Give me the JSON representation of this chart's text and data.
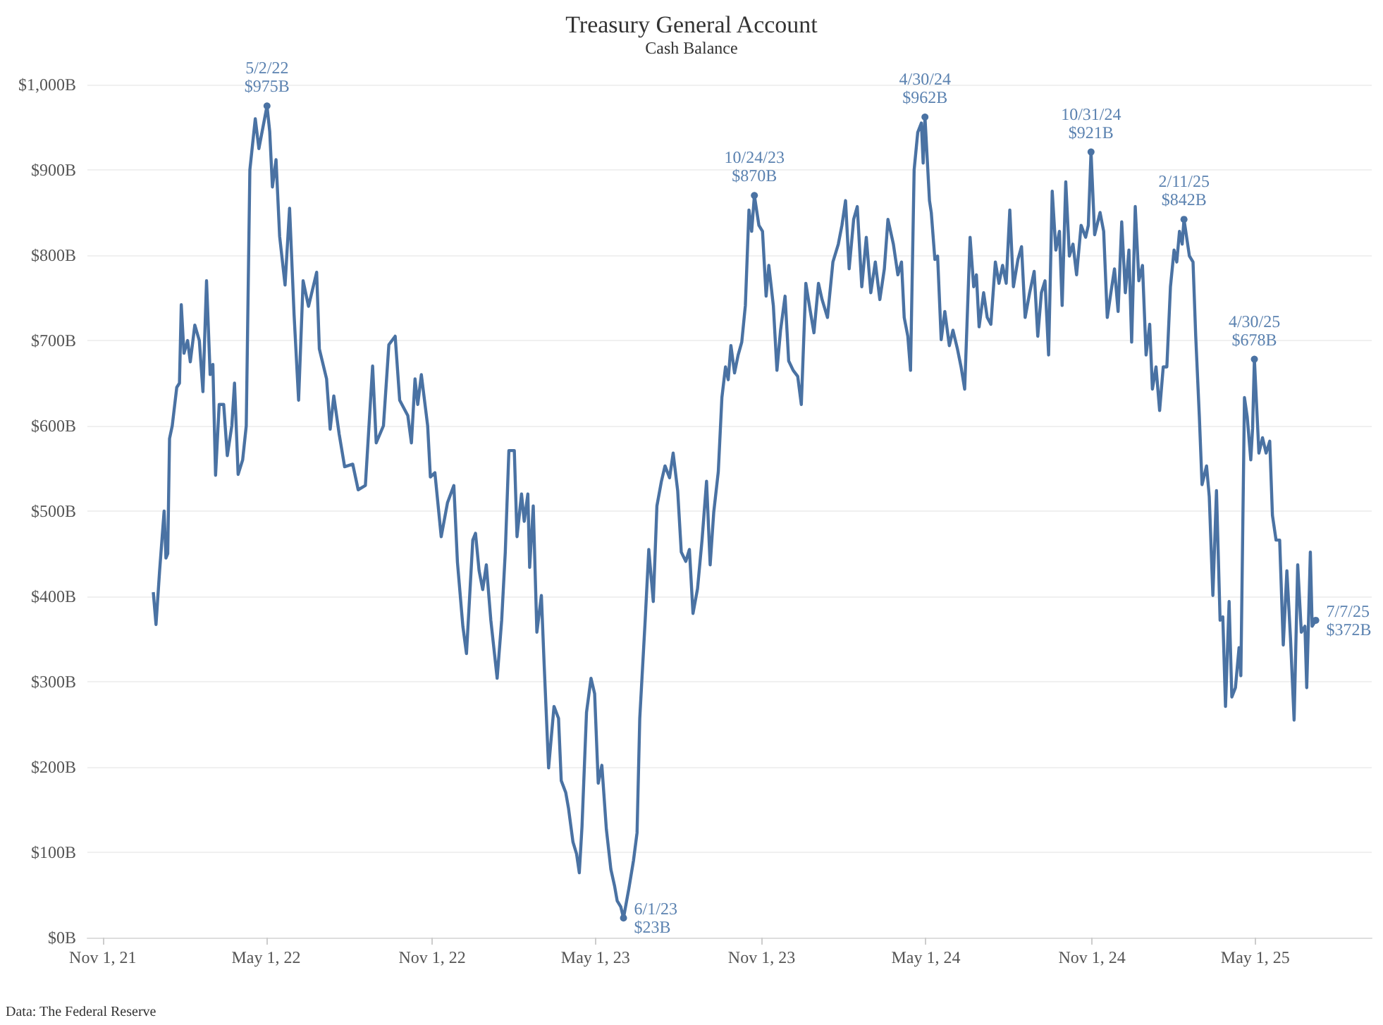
{
  "chart_data": {
    "type": "line",
    "title": "Treasury General Account",
    "subtitle": "Cash Balance",
    "x": [
      "2021-12-27",
      "2021-12-30",
      "2022-01-03",
      "2022-01-08",
      "2022-01-10",
      "2022-01-12",
      "2022-01-14",
      "2022-01-17",
      "2022-01-22",
      "2022-01-25",
      "2022-01-27",
      "2022-01-30",
      "2022-02-03",
      "2022-02-06",
      "2022-02-11",
      "2022-02-16",
      "2022-02-20",
      "2022-02-24",
      "2022-02-28",
      "2022-03-03",
      "2022-03-06",
      "2022-03-10",
      "2022-03-15",
      "2022-03-19",
      "2022-03-24",
      "2022-03-27",
      "2022-03-31",
      "2022-04-05",
      "2022-04-09",
      "2022-04-13",
      "2022-04-19",
      "2022-04-23",
      "2022-05-02",
      "2022-05-05",
      "2022-05-08",
      "2022-05-12",
      "2022-05-16",
      "2022-05-22",
      "2022-05-27",
      "2022-06-01",
      "2022-06-06",
      "2022-06-11",
      "2022-06-17",
      "2022-06-26",
      "2022-06-29",
      "2022-07-07",
      "2022-07-11",
      "2022-07-15",
      "2022-07-21",
      "2022-07-27",
      "2022-08-05",
      "2022-08-11",
      "2022-08-19",
      "2022-08-23",
      "2022-08-27",
      "2022-08-31",
      "2022-09-08",
      "2022-09-14",
      "2022-09-21",
      "2022-09-26",
      "2022-10-05",
      "2022-10-09",
      "2022-10-13",
      "2022-10-16",
      "2022-10-20",
      "2022-10-27",
      "2022-10-30",
      "2022-11-04",
      "2022-11-11",
      "2022-11-18",
      "2022-11-25",
      "2022-11-29",
      "2022-12-05",
      "2022-12-09",
      "2022-12-16",
      "2022-12-19",
      "2022-12-23",
      "2022-12-27",
      "2022-12-31",
      "2023-01-05",
      "2023-01-12",
      "2023-01-17",
      "2023-01-21",
      "2023-01-25",
      "2023-01-31",
      "2023-02-03",
      "2023-02-08",
      "2023-02-11",
      "2023-02-15",
      "2023-02-17",
      "2023-02-21",
      "2023-02-25",
      "2023-03-02",
      "2023-03-05",
      "2023-03-10",
      "2023-03-16",
      "2023-03-21",
      "2023-03-24",
      "2023-03-29",
      "2023-04-01",
      "2023-04-06",
      "2023-04-10",
      "2023-04-13",
      "2023-04-16",
      "2023-04-21",
      "2023-04-26",
      "2023-04-30",
      "2023-05-04",
      "2023-05-08",
      "2023-05-13",
      "2023-05-18",
      "2023-05-22",
      "2023-05-25",
      "2023-05-29",
      "2023-06-01",
      "2023-06-07",
      "2023-06-12",
      "2023-06-16",
      "2023-06-19",
      "2023-06-25",
      "2023-06-29",
      "2023-07-04",
      "2023-07-08",
      "2023-07-13",
      "2023-07-17",
      "2023-07-22",
      "2023-07-26",
      "2023-07-31",
      "2023-08-04",
      "2023-08-09",
      "2023-08-13",
      "2023-08-17",
      "2023-08-22",
      "2023-08-27",
      "2023-09-01",
      "2023-09-05",
      "2023-09-09",
      "2023-09-14",
      "2023-09-18",
      "2023-09-22",
      "2023-09-25",
      "2023-09-28",
      "2023-10-02",
      "2023-10-06",
      "2023-10-10",
      "2023-10-14",
      "2023-10-18",
      "2023-10-21",
      "2023-10-24",
      "2023-10-29",
      "2023-11-02",
      "2023-11-06",
      "2023-11-09",
      "2023-11-14",
      "2023-11-18",
      "2023-11-22",
      "2023-11-27",
      "2023-12-01",
      "2023-12-06",
      "2023-12-11",
      "2023-12-15",
      "2023-12-20",
      "2023-12-25",
      "2023-12-29",
      "2024-01-03",
      "2024-01-07",
      "2024-01-13",
      "2024-01-19",
      "2024-01-25",
      "2024-01-29",
      "2024-02-02",
      "2024-02-06",
      "2024-02-11",
      "2024-02-15",
      "2024-02-20",
      "2024-02-25",
      "2024-03-01",
      "2024-03-06",
      "2024-03-11",
      "2024-03-16",
      "2024-03-20",
      "2024-03-26",
      "2024-03-31",
      "2024-04-04",
      "2024-04-07",
      "2024-04-11",
      "2024-04-14",
      "2024-04-18",
      "2024-04-22",
      "2024-04-26",
      "2024-04-28",
      "2024-04-30",
      "2024-05-05",
      "2024-05-07",
      "2024-05-11",
      "2024-05-14",
      "2024-05-18",
      "2024-05-22",
      "2024-05-27",
      "2024-05-31",
      "2024-06-05",
      "2024-06-09",
      "2024-06-13",
      "2024-06-19",
      "2024-06-23",
      "2024-06-26",
      "2024-06-29",
      "2024-07-04",
      "2024-07-08",
      "2024-07-12",
      "2024-07-17",
      "2024-07-21",
      "2024-07-25",
      "2024-07-29",
      "2024-08-02",
      "2024-08-06",
      "2024-08-11",
      "2024-08-15",
      "2024-08-19",
      "2024-08-24",
      "2024-08-29",
      "2024-09-02",
      "2024-09-06",
      "2024-09-10",
      "2024-09-14",
      "2024-09-18",
      "2024-09-22",
      "2024-09-26",
      "2024-09-29",
      "2024-10-03",
      "2024-10-07",
      "2024-10-11",
      "2024-10-15",
      "2024-10-20",
      "2024-10-25",
      "2024-10-28",
      "2024-10-31",
      "2024-11-04",
      "2024-11-10",
      "2024-11-14",
      "2024-11-18",
      "2024-11-22",
      "2024-11-26",
      "2024-11-30",
      "2024-12-04",
      "2024-12-08",
      "2024-12-12",
      "2024-12-15",
      "2024-12-19",
      "2024-12-23",
      "2024-12-27",
      "2024-12-31",
      "2025-01-04",
      "2025-01-07",
      "2025-01-11",
      "2025-01-15",
      "2025-01-19",
      "2025-01-23",
      "2025-01-27",
      "2025-01-31",
      "2025-02-03",
      "2025-02-06",
      "2025-02-09",
      "2025-02-11",
      "2025-02-17",
      "2025-02-21",
      "2025-02-24",
      "2025-02-28",
      "2025-03-03",
      "2025-03-08",
      "2025-03-11",
      "2025-03-15",
      "2025-03-19",
      "2025-03-23",
      "2025-03-26",
      "2025-03-29",
      "2025-04-02",
      "2025-04-05",
      "2025-04-09",
      "2025-04-13",
      "2025-04-15",
      "2025-04-19",
      "2025-04-22",
      "2025-04-26",
      "2025-04-28",
      "2025-04-30",
      "2025-05-05",
      "2025-05-09",
      "2025-05-13",
      "2025-05-17",
      "2025-05-20",
      "2025-05-24",
      "2025-05-28",
      "2025-06-01",
      "2025-06-05",
      "2025-06-09",
      "2025-06-13",
      "2025-06-17",
      "2025-06-21",
      "2025-06-25",
      "2025-06-27",
      "2025-07-01",
      "2025-07-03",
      "2025-07-07"
    ],
    "series": [
      {
        "color": "#4a72a3",
        "values": [
          405,
          367,
          430,
          500,
          445,
          450,
          585,
          600,
          645,
          650,
          742,
          685,
          700,
          675,
          718,
          700,
          640,
          770,
          660,
          672,
          542,
          625,
          625,
          565,
          600,
          650,
          543,
          560,
          600,
          900,
          960,
          925,
          975,
          945,
          880,
          912,
          822,
          765,
          855,
          730,
          630,
          770,
          740,
          780,
          690,
          655,
          596,
          635,
          590,
          552,
          555,
          525,
          530,
          600,
          670,
          580,
          600,
          695,
          705,
          630,
          612,
          580,
          655,
          625,
          660,
          600,
          540,
          545,
          470,
          510,
          530,
          440,
          365,
          333,
          466,
          474,
          430,
          408,
          437,
          372,
          304,
          372,
          452,
          571,
          571,
          470,
          520,
          488,
          520,
          434,
          506,
          358,
          401,
          322,
          199,
          271,
          257,
          184,
          170,
          152,
          112,
          98,
          76,
          130,
          264,
          304,
          286,
          181,
          202,
          127,
          80,
          61,
          43,
          36,
          23,
          58,
          90,
          123,
          257,
          372,
          455,
          394,
          506,
          535,
          553,
          539,
          568,
          524,
          452,
          441,
          455,
          380,
          409,
          466,
          535,
          437,
          499,
          546,
          633,
          669,
          654,
          694,
          662,
          683,
          698,
          741,
          853,
          828,
          870,
          835,
          828,
          752,
          788,
          741,
          665,
          712,
          752,
          676,
          665,
          658,
          625,
          767,
          734,
          709,
          767,
          748,
          727,
          792,
          813,
          835,
          864,
          784,
          842,
          857,
          763,
          821,
          756,
          792,
          748,
          784,
          842,
          813,
          777,
          792,
          727,
          705,
          665,
          900,
          944,
          955,
          908,
          962,
          864,
          850,
          795,
          799,
          701,
          734,
          694,
          712,
          690,
          669,
          643,
          821,
          763,
          777,
          716,
          756,
          727,
          719,
          792,
          767,
          788,
          767,
          853,
          763,
          795,
          810,
          727,
          756,
          781,
          705,
          756,
          770,
          683,
          875,
          806,
          828,
          741,
          886,
          799,
          813,
          777,
          835,
          821,
          835,
          921,
          824,
          850,
          828,
          727,
          756,
          784,
          734,
          839,
          756,
          806,
          698,
          857,
          770,
          788,
          683,
          719,
          643,
          669,
          618,
          669,
          669,
          763,
          806,
          792,
          828,
          813,
          842,
          799,
          792,
          705,
          611,
          531,
          553,
          517,
          401,
          524,
          372,
          376,
          271,
          394,
          282,
          293,
          340,
          307,
          633,
          611,
          560,
          597,
          678,
          568,
          586,
          568,
          582,
          495,
          466,
          466,
          343,
          430,
          351,
          255,
          437,
          358,
          365,
          293,
          452,
          365,
          372
        ]
      }
    ],
    "xlim": [
      "2021-10-15",
      "2025-09-07"
    ],
    "xticks": [
      {
        "value": "2021-11-01",
        "label": "Nov 1, 21"
      },
      {
        "value": "2022-05-01",
        "label": "May 1, 22"
      },
      {
        "value": "2022-11-01",
        "label": "Nov 1, 22"
      },
      {
        "value": "2023-05-01",
        "label": "May 1, 23"
      },
      {
        "value": "2023-11-01",
        "label": "Nov 1, 23"
      },
      {
        "value": "2024-05-01",
        "label": "May 1, 24"
      },
      {
        "value": "2024-11-01",
        "label": "Nov 1, 24"
      },
      {
        "value": "2025-05-01",
        "label": "May 1, 25"
      }
    ],
    "ylim": [
      0,
      1000
    ],
    "yticks": [
      {
        "value": 0,
        "label": "$0B"
      },
      {
        "value": 100,
        "label": "$100B"
      },
      {
        "value": 200,
        "label": "$200B"
      },
      {
        "value": 300,
        "label": "$300B"
      },
      {
        "value": 400,
        "label": "$400B"
      },
      {
        "value": 500,
        "label": "$500B"
      },
      {
        "value": 600,
        "label": "$600B"
      },
      {
        "value": 700,
        "label": "$700B"
      },
      {
        "value": 800,
        "label": "$800B"
      },
      {
        "value": 900,
        "label": "$900B"
      },
      {
        "value": 1000,
        "label": "$1,000B"
      }
    ],
    "grid": "y",
    "marker": "none",
    "line_style": "solid",
    "annotations": [
      {
        "text": "5/2/22\n$975B",
        "x": "2022-05-02",
        "y": 975
      },
      {
        "text": "6/1/23\n$23B",
        "x": "2023-06-01",
        "y": 23
      },
      {
        "text": "10/24/23\n$870B",
        "x": "2023-10-24",
        "y": 870
      },
      {
        "text": "4/30/24\n$962B",
        "x": "2024-04-30",
        "y": 962
      },
      {
        "text": "10/31/24\n$921B",
        "x": "2024-10-31",
        "y": 921
      },
      {
        "text": "2/11/25\n$842B",
        "x": "2025-02-11",
        "y": 842
      },
      {
        "text": "4/30/25\n$678B",
        "x": "2025-04-30",
        "y": 678
      },
      {
        "text": "7/7/25\n$372B",
        "x": "2025-07-07",
        "y": 372
      },
      "Data: The Federal Reserve"
    ]
  }
}
